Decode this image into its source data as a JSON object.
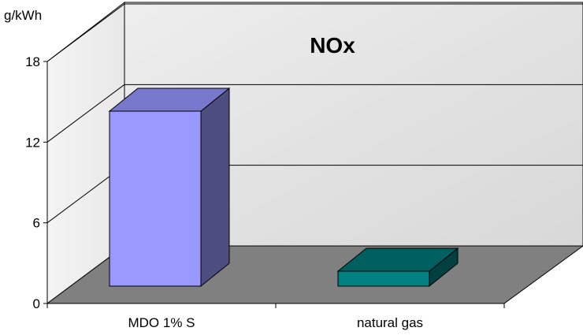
{
  "chart_data": {
    "type": "bar",
    "title": "NOx",
    "ylabel": "g/kWh",
    "xlabel": "",
    "categories": [
      "MDO 1% S",
      "natural gas"
    ],
    "values": [
      14.0,
      1.2
    ],
    "ylim": [
      0,
      18
    ],
    "yticks": [
      "0",
      "6",
      "12",
      "18"
    ],
    "grid": true,
    "legend": "none",
    "colors": {
      "MDO 1% S": {
        "front": "#9999FF",
        "top": "#7777CC",
        "side": "#4D4D80"
      },
      "natural gas": {
        "front": "#008080",
        "top": "#006060",
        "side": "#004040"
      },
      "back_wall": "#E3E3E3",
      "side_wall": "#F0F0F0",
      "floor": "#808080"
    }
  }
}
